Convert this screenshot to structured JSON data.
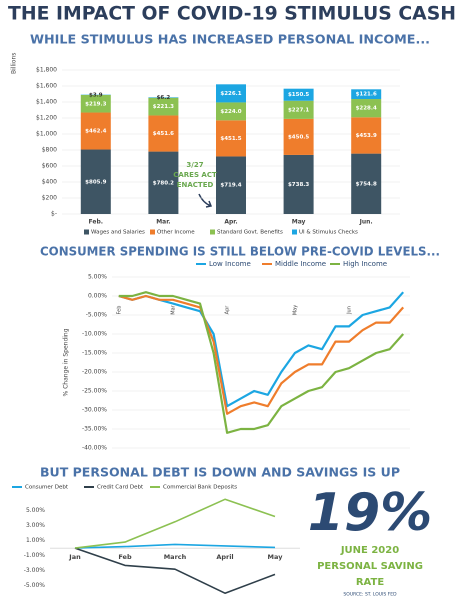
{
  "title": "THE IMPACT OF COVID-19 STIMULUS CASH",
  "chart_data": [
    {
      "type": "bar",
      "stacked": true,
      "title": "WHILE STIMULUS HAS INCREASED PERSONAL INCOME...",
      "y_label": "Billions",
      "categories": [
        "Feb.",
        "Mar.",
        "Apr.",
        "May",
        "Jun."
      ],
      "series": [
        {
          "name": "Wages and Salaries",
          "color": "#3e5564",
          "values": [
            805.9,
            780.2,
            719.4,
            738.3,
            754.8
          ],
          "value_labels": [
            "$805.9",
            "$780.2",
            "$719.4",
            "$738.3",
            "$754.8"
          ]
        },
        {
          "name": "Other Income",
          "color": "#ef7d2c",
          "values": [
            462.4,
            451.6,
            451.5,
            450.5,
            453.9
          ],
          "value_labels": [
            "$462.4",
            "$451.6",
            "$451.5",
            "$450.5",
            "$453.9"
          ]
        },
        {
          "name": "Standard Govt. Benefits",
          "color": "#8cc152",
          "values": [
            219.3,
            221.3,
            224.0,
            227.1,
            228.4
          ],
          "value_labels": [
            "$219.3",
            "$221.3",
            "$224.0",
            "$227.1",
            "$228.4"
          ]
        },
        {
          "name": "UI & Stimulus Checks",
          "color": "#1ca6e2",
          "values": [
            3.9,
            6.2,
            226.1,
            150.5,
            121.6
          ],
          "value_labels": [
            "$3.9",
            "$6.2",
            "$226.1",
            "$150.5",
            "$121.6"
          ]
        }
      ],
      "ylim": [
        0,
        1800
      ],
      "yticks": [
        {
          "value": 0,
          "label": "$-"
        },
        {
          "value": 200,
          "label": "$200"
        },
        {
          "value": 400,
          "label": "$400"
        },
        {
          "value": 600,
          "label": "$600"
        },
        {
          "value": 800,
          "label": "$800"
        },
        {
          "value": 1000,
          "label": "$1,000"
        },
        {
          "value": 1200,
          "label": "$1,200"
        },
        {
          "value": 1400,
          "label": "$1,400"
        },
        {
          "value": 1600,
          "label": "$1,600"
        },
        {
          "value": 1800,
          "label": "$1,800"
        }
      ],
      "grid": true,
      "legend": "bottom",
      "annotation": [
        "3/27",
        "CARES ACT",
        "ENACTED"
      ]
    },
    {
      "type": "line",
      "title": "CONSUMER SPENDING IS STILL BELOW PRE-COVID LEVELS...",
      "y_label": "% Change in Spending",
      "categories": [
        "Feb",
        null,
        null,
        null,
        "Mar",
        null,
        null,
        null,
        "Apr",
        null,
        null,
        null,
        null,
        "May",
        null,
        null,
        null,
        "Jun",
        null,
        null,
        null,
        null
      ],
      "series": [
        {
          "name": "Low Income",
          "color": "#1ca6e2",
          "values": [
            0,
            -1,
            0,
            -1,
            -2,
            -3,
            -4,
            -10,
            -29,
            -27,
            -25,
            -26,
            -20,
            -15,
            -13,
            -14,
            -8,
            -8,
            -5,
            -4,
            -3,
            1
          ]
        },
        {
          "name": "Middle Income",
          "color": "#ef7d2c",
          "values": [
            0,
            -1,
            0,
            -1,
            -1,
            -2,
            -3,
            -12,
            -31,
            -29,
            -28,
            -29,
            -23,
            -20,
            -18,
            -18,
            -12,
            -12,
            -9,
            -7,
            -7,
            -3
          ]
        },
        {
          "name": "High Income",
          "color": "#7cb342",
          "values": [
            0,
            0,
            1,
            0,
            0,
            -1,
            -2,
            -15,
            -36,
            -35,
            -35,
            -34,
            -29,
            -27,
            -25,
            -24,
            -20,
            -19,
            -17,
            -15,
            -14,
            -10
          ]
        }
      ],
      "ylim": [
        -40,
        5
      ],
      "yticks": [
        {
          "value": 5,
          "label": "5.00%"
        },
        {
          "value": 0,
          "label": "0.00%"
        },
        {
          "value": -5,
          "label": "-5.00%"
        },
        {
          "value": -10,
          "label": "-10.00%"
        },
        {
          "value": -15,
          "label": "-15.00%"
        },
        {
          "value": -20,
          "label": "-20.00%"
        },
        {
          "value": -25,
          "label": "-25.00%"
        },
        {
          "value": -30,
          "label": "-30.00%"
        },
        {
          "value": -35,
          "label": "-35.00%"
        },
        {
          "value": -40,
          "label": "-40.00%"
        }
      ],
      "grid": true,
      "legend": "top"
    },
    {
      "type": "line",
      "title": "BUT PERSONAL DEBT IS DOWN AND SAVINGS IS UP",
      "categories": [
        "Jan",
        "Feb",
        "March",
        "April",
        "May"
      ],
      "series": [
        {
          "name": "Consumer Debt",
          "color": "#1ca6e2",
          "values": [
            0,
            0.2,
            0.5,
            0.3,
            0.1
          ]
        },
        {
          "name": "Credit Card Debt",
          "color": "#2f3f4a",
          "values": [
            0,
            -2.3,
            -2.8,
            -6,
            -3.5
          ]
        },
        {
          "name": "Commercial Bank Deposits",
          "color": "#8cc152",
          "values": [
            0,
            0.8,
            3.5,
            6.5,
            4.2
          ]
        }
      ],
      "ylim": [
        -6.5,
        6.8
      ],
      "yticks": [
        {
          "value": 5,
          "label": "5.00%"
        },
        {
          "value": 3,
          "label": "3.00%"
        },
        {
          "value": 1,
          "label": "1.00%"
        },
        {
          "value": -1,
          "label": "-1.00%"
        },
        {
          "value": -3,
          "label": "-3.00%"
        },
        {
          "value": -5,
          "label": "-5.00%"
        }
      ],
      "grid": false,
      "legend": "top"
    }
  ],
  "stat": {
    "value": "19%",
    "lines": [
      "JUNE 2020",
      "PERSONAL SAVING",
      "RATE"
    ],
    "source": "SOURCE: ST. LOUIS FED"
  }
}
